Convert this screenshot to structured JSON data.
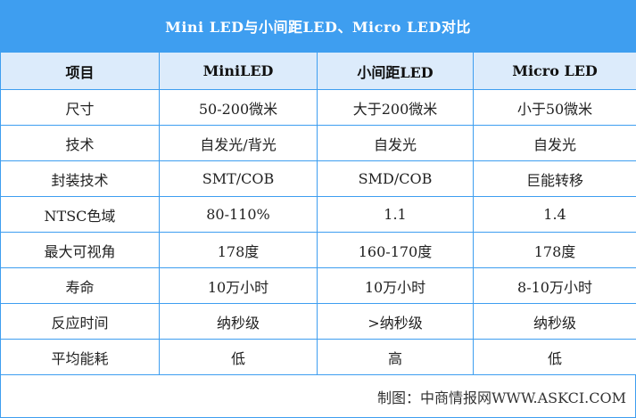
{
  "title": "Mini LED与小间距LED、Micro LED对比",
  "colors": {
    "accent": "#3e9ef0",
    "header_bg": "#dcebfb"
  },
  "headers": [
    "项目",
    "MiniLED",
    "小间距LED",
    "Micro LED"
  ],
  "rows": [
    [
      "尺寸",
      "50-200微米",
      "大于200微米",
      "小于50微米"
    ],
    [
      "技术",
      "自发光/背光",
      "自发光",
      "自发光"
    ],
    [
      "封装技术",
      "SMT/COB",
      "SMD/COB",
      "巨能转移"
    ],
    [
      "NTSC色域",
      "80-110%",
      "1.1",
      "1.4"
    ],
    [
      "最大可视角",
      "178度",
      "160-170度",
      "178度"
    ],
    [
      "寿命",
      "10万小时",
      "10万小时",
      "8-10万小时"
    ],
    [
      "反应时间",
      "纳秒级",
      ">纳秒级",
      "纳秒级"
    ],
    [
      "平均能耗",
      "低",
      "高",
      "低"
    ]
  ],
  "footer": "制图：中商情报网WWW.ASKCI.COM"
}
